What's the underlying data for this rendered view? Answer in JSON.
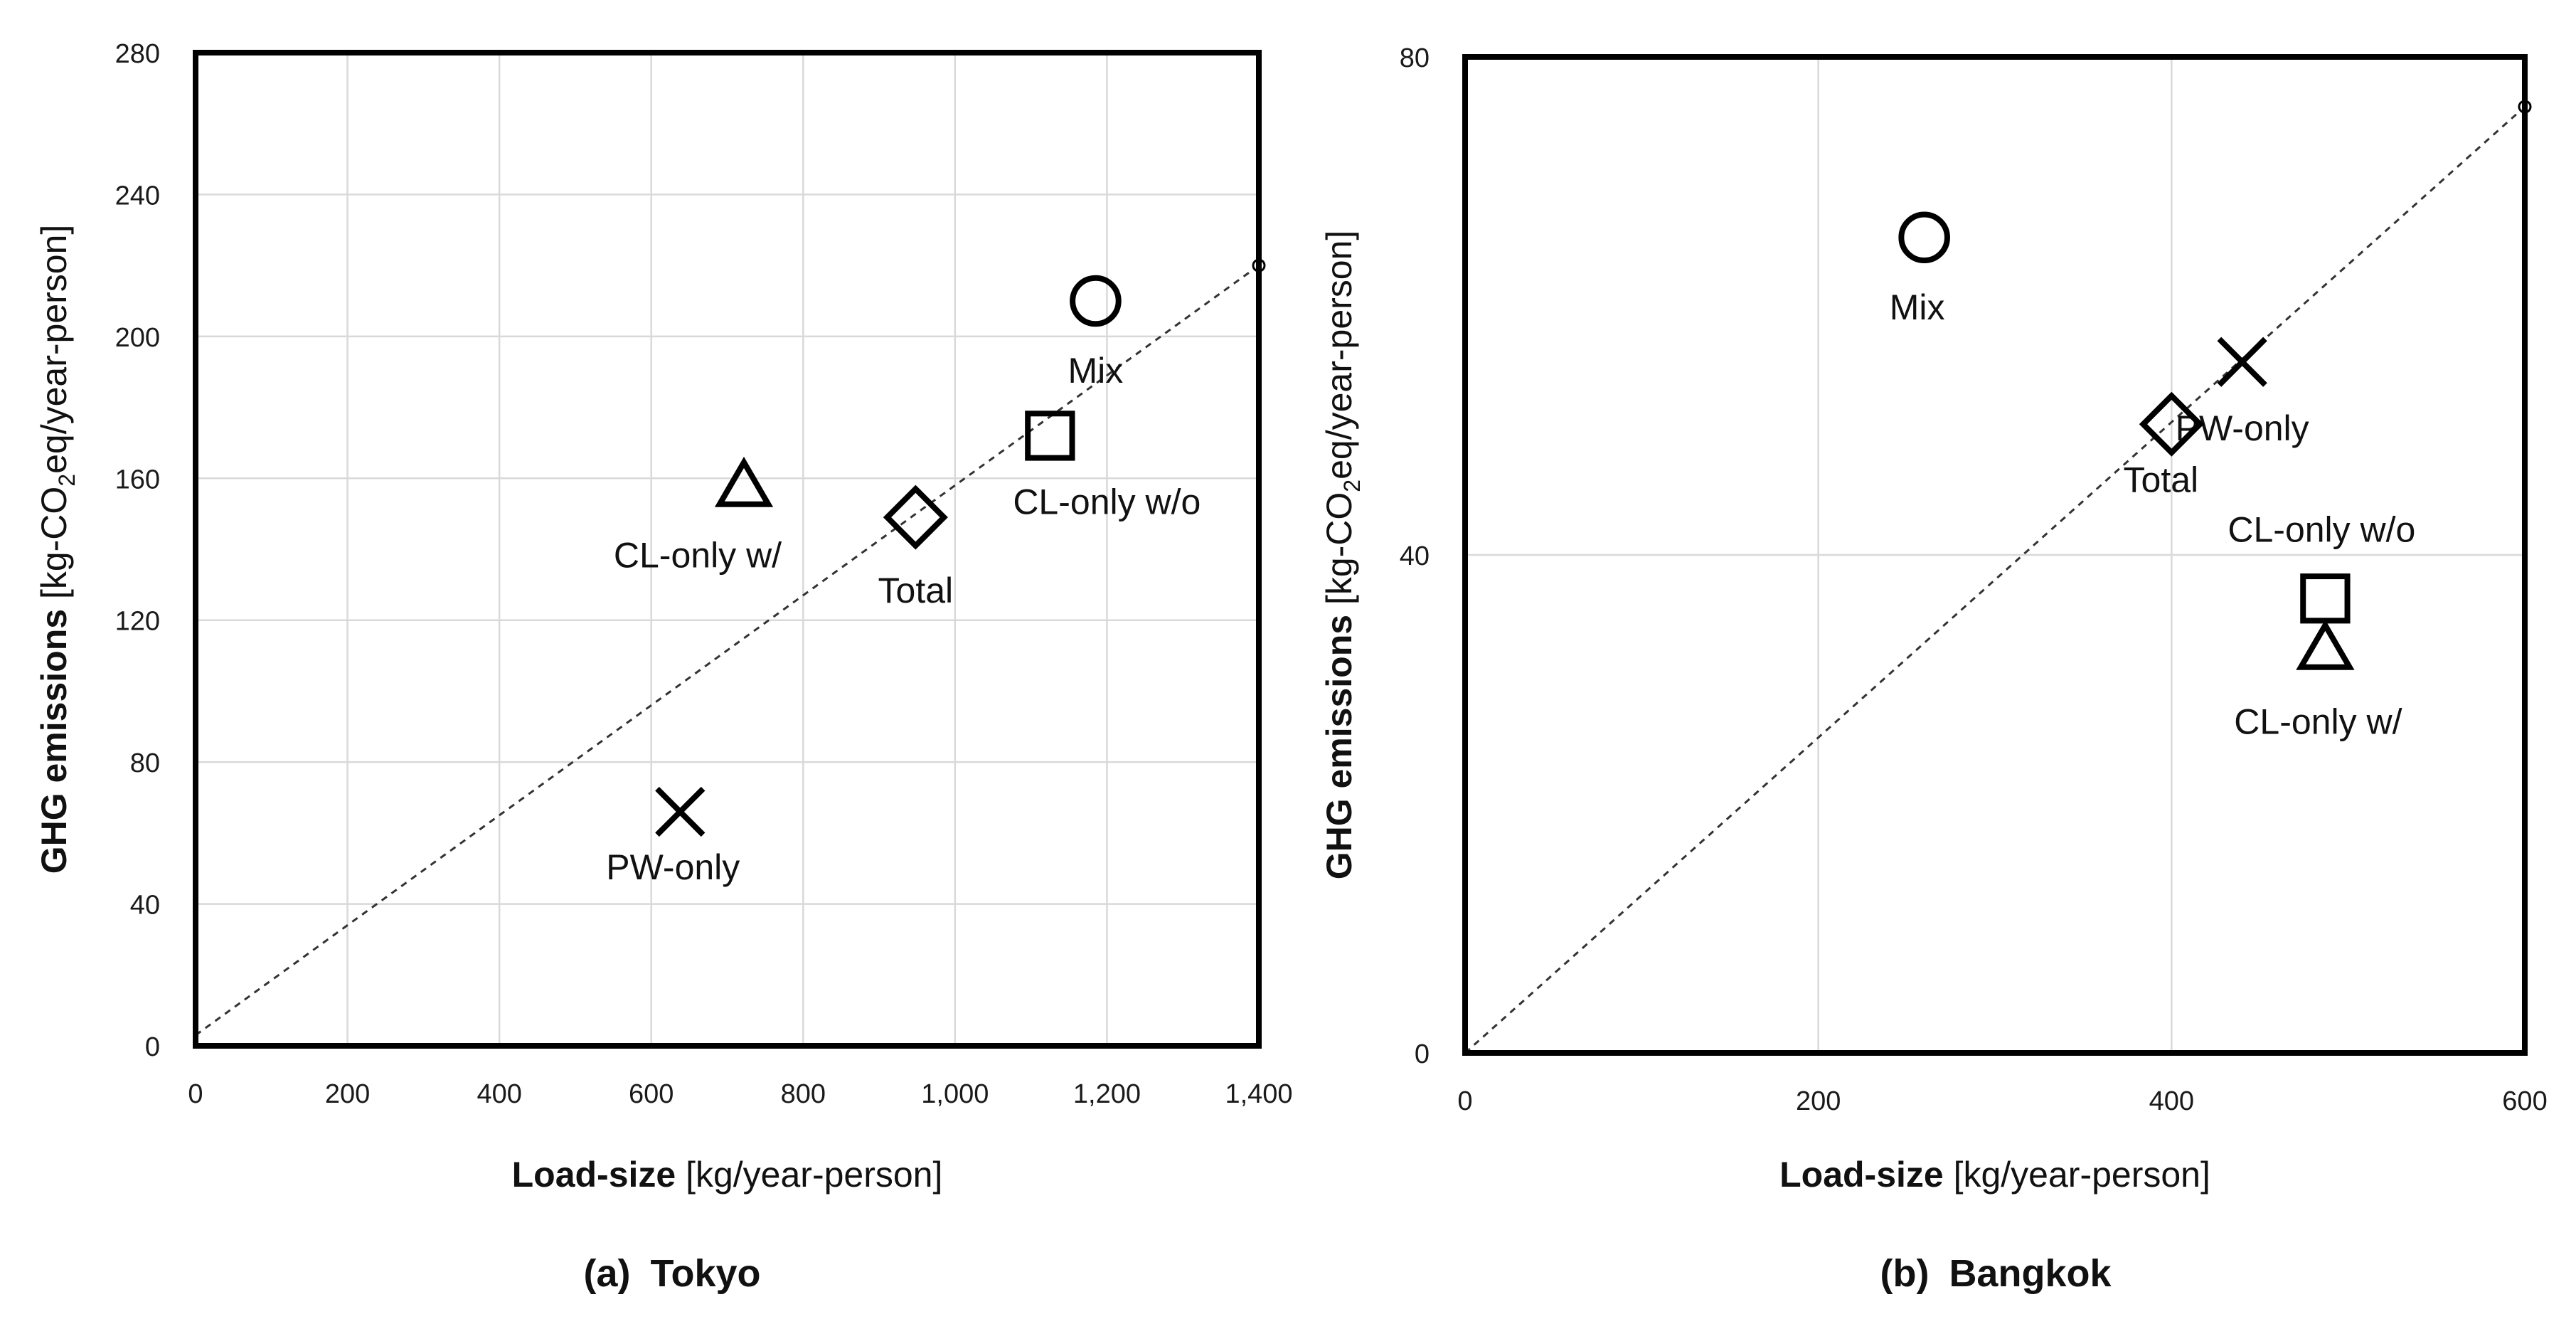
{
  "chart_data": [
    {
      "type": "scatter",
      "title": "",
      "caption_letter": "(a)",
      "caption_city": "Tokyo",
      "xlabel_bold": "Load-size",
      "xlabel_rest": "[kg/year-person]",
      "ylabel_bold": "GHG emissions",
      "ylabel_pre": "[kg-CO",
      "ylabel_sub": "2",
      "ylabel_post": "eq/year-person]",
      "xlim": [
        0,
        1400
      ],
      "ylim": [
        0,
        280
      ],
      "xticks": [
        0,
        200,
        400,
        600,
        800,
        1000,
        1200,
        1400
      ],
      "xtick_labels": [
        "0",
        "200",
        "400",
        "600",
        "800",
        "1,000",
        "1,200",
        "1,400"
      ],
      "yticks": [
        0,
        40,
        80,
        120,
        160,
        200,
        240,
        280
      ],
      "ytick_labels": [
        "0",
        "40",
        "80",
        "120",
        "160",
        "200",
        "240",
        "280"
      ],
      "grid": true,
      "reference_line": {
        "from": [
          0,
          3
        ],
        "to": [
          1400,
          220
        ]
      },
      "points": [
        {
          "name": "Mix",
          "marker": "circle",
          "x": 1185,
          "y": 210
        },
        {
          "name": "CL-only w/o",
          "marker": "square",
          "x": 1125,
          "y": 172
        },
        {
          "name": "CL-only w/",
          "marker": "triangle",
          "x": 722,
          "y": 158
        },
        {
          "name": "Total",
          "marker": "diamond",
          "x": 948,
          "y": 149
        },
        {
          "name": "PW-only",
          "marker": "cross",
          "x": 638,
          "y": 66
        }
      ]
    },
    {
      "type": "scatter",
      "title": "",
      "caption_letter": "(b)",
      "caption_city": "Bangkok",
      "xlabel_bold": "Load-size",
      "xlabel_rest": "[kg/year-person]",
      "ylabel_bold": "GHG emissions",
      "ylabel_pre": "[kg-CO",
      "ylabel_sub": "2",
      "ylabel_post": "eq/year-person]",
      "xlim": [
        0,
        600
      ],
      "ylim": [
        0,
        80
      ],
      "xticks": [
        0,
        200,
        400,
        600
      ],
      "xtick_labels": [
        "0",
        "200",
        "400",
        "600"
      ],
      "yticks": [
        0,
        40,
        80
      ],
      "ytick_labels": [
        "0",
        "40",
        "80"
      ],
      "grid": true,
      "reference_line": {
        "from": [
          0,
          0
        ],
        "to": [
          600,
          76
        ]
      },
      "points": [
        {
          "name": "Mix",
          "marker": "circle",
          "x": 260,
          "y": 65.5
        },
        {
          "name": "PW-only",
          "marker": "cross",
          "x": 440,
          "y": 55.5
        },
        {
          "name": "Total",
          "marker": "diamond",
          "x": 400,
          "y": 50.5
        },
        {
          "name": "CL-only w/o",
          "marker": "square",
          "x": 487,
          "y": 36.5
        },
        {
          "name": "CL-only w/",
          "marker": "triangle",
          "x": 487,
          "y": 32.5
        }
      ]
    }
  ]
}
